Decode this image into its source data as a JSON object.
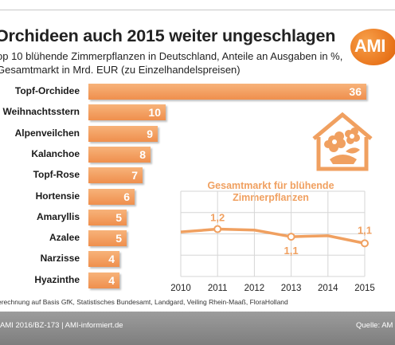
{
  "header": {
    "title": "Orchideen auch 2015 weiter ungeschlagen",
    "subtitle": "op 10 blühende Zimmerpflanzen in Deutschland, Anteile an Ausgaben in %, Gesamtmarkt in Mrd. EUR (zu Einzelhandelspreisen)",
    "logo_text": "AMI"
  },
  "colors": {
    "bar": "#ef8f4d",
    "line": "#f0a060",
    "footer": "#8c8c8c"
  },
  "chart_data": [
    {
      "type": "bar",
      "orientation": "horizontal",
      "categories": [
        "Topf-Orchidee",
        "Weihnachtsstern",
        "Alpenveilchen",
        "Kalanchoe",
        "Topf-Rose",
        "Hortensie",
        "Amaryllis",
        "Azalee",
        "Narzisse",
        "Hyazinthe"
      ],
      "values": [
        36,
        10,
        9,
        8,
        7,
        6,
        5,
        5,
        4,
        4
      ],
      "value_labels": [
        "36",
        "10",
        "9",
        "8",
        "7",
        "6",
        "5",
        "5",
        "4",
        "4"
      ],
      "xlim": [
        0,
        36
      ]
    },
    {
      "type": "line",
      "title": "Gesamtmarkt für blühende Zimmerpflanzen",
      "x": [
        2010,
        2011,
        2012,
        2013,
        2014,
        2015
      ],
      "x_ticks": [
        "2010",
        "2011",
        "2012",
        "2013",
        "2014",
        "2015"
      ],
      "y": [
        1.17,
        1.2,
        1.19,
        1.12,
        1.13,
        1.05
      ],
      "ylim": [
        0.7,
        1.6
      ],
      "data_labels": [
        {
          "index": 1,
          "text": "1,2"
        },
        {
          "index": 3,
          "text": "1,1"
        },
        {
          "index": 5,
          "text": "1,1"
        }
      ],
      "grid": true
    }
  ],
  "footer": {
    "source": "erechnung auf Basis GfK, Statistisches Bundesamt, Landgard, Veiling Rhein-Maaß, FloraHolland",
    "left": "AMI 2016/BZ-173 | AMI-informiert.de",
    "right": "Quelle: AM"
  }
}
